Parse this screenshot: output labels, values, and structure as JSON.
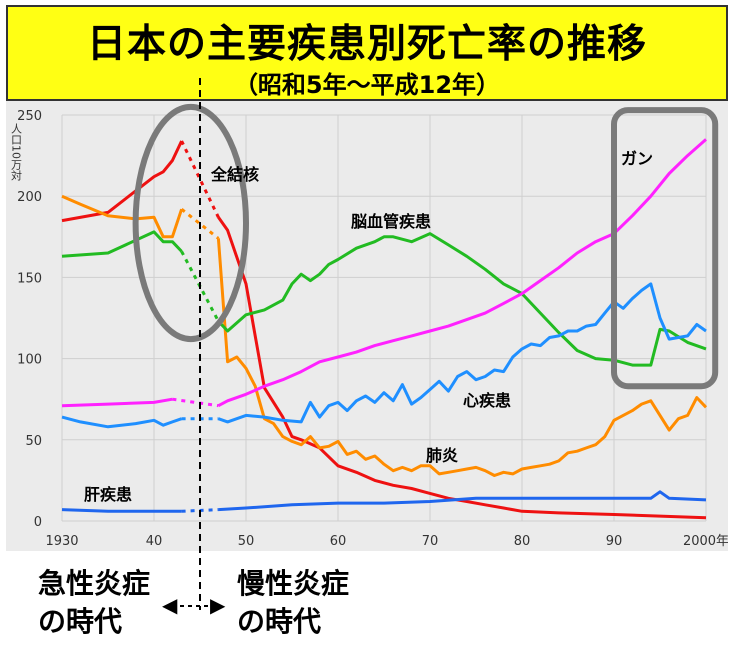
{
  "banner": {
    "title": "日本の主要疾患別死亡率の推移",
    "subtitle": "（昭和5年～平成12年）"
  },
  "eras": {
    "acute": [
      "急性炎症",
      "の時代"
    ],
    "chronic": [
      "慢性炎症",
      "の時代"
    ]
  },
  "chart_data": {
    "type": "line",
    "title": "日本の主要疾患別死亡率の推移",
    "ylabel": "人口10万対",
    "xlim": [
      1930,
      2000
    ],
    "ylim": [
      0,
      250
    ],
    "yticks": [
      0,
      50,
      100,
      150,
      200,
      250
    ],
    "xticks": [
      {
        "value": 1930,
        "label": "1930"
      },
      {
        "value": 1940,
        "label": "40"
      },
      {
        "value": 1950,
        "label": "50"
      },
      {
        "value": 1960,
        "label": "60"
      },
      {
        "value": 1970,
        "label": "70"
      },
      {
        "value": 1980,
        "label": "80"
      },
      {
        "value": 1990,
        "label": "90"
      },
      {
        "value": 2000,
        "label": "2000年"
      }
    ],
    "gap": [
      1943,
      1947
    ],
    "divider_year": 1945,
    "series": [
      {
        "name": "全結核",
        "color": "#ee1111",
        "x": [
          1930,
          1935,
          1940,
          1941,
          1942,
          1943,
          1947,
          1948,
          1950,
          1952,
          1954,
          1955,
          1956,
          1958,
          1960,
          1962,
          1964,
          1966,
          1968,
          1970,
          1972,
          1974,
          1976,
          1978,
          1980,
          1984,
          1990,
          1995,
          2000
        ],
        "y": [
          185,
          190,
          212,
          215,
          222,
          234,
          187,
          179,
          146,
          82,
          64,
          52,
          50,
          45,
          34,
          30,
          25,
          22,
          20,
          17,
          14,
          12,
          10,
          8,
          6,
          5,
          4,
          3,
          2
        ]
      },
      {
        "name": "肺炎",
        "color": "#ff8c00",
        "x": [
          1930,
          1932,
          1935,
          1938,
          1940,
          1941,
          1942,
          1943,
          1947,
          1948,
          1949,
          1950,
          1951,
          1952,
          1953,
          1954,
          1955,
          1956,
          1957,
          1958,
          1959,
          1960,
          1961,
          1962,
          1963,
          1964,
          1965,
          1966,
          1967,
          1968,
          1969,
          1970,
          1971,
          1972,
          1973,
          1974,
          1975,
          1976,
          1977,
          1978,
          1979,
          1980,
          1981,
          1982,
          1983,
          1984,
          1985,
          1986,
          1987,
          1988,
          1989,
          1990,
          1991,
          1992,
          1993,
          1994,
          1995,
          1996,
          1997,
          1998,
          1999,
          2000
        ],
        "y": [
          200,
          195,
          188,
          186,
          187,
          175,
          175,
          192,
          174,
          98,
          101,
          94,
          83,
          63,
          60,
          52,
          49,
          47,
          52,
          45,
          46,
          49,
          41,
          43,
          38,
          40,
          35,
          31,
          33,
          31,
          34,
          34,
          29,
          30,
          31,
          32,
          33,
          31,
          28,
          30,
          29,
          32,
          33,
          34,
          35,
          37,
          42,
          43,
          45,
          47,
          52,
          62,
          65,
          68,
          72,
          74,
          65,
          56,
          63,
          65,
          76,
          70
        ]
      },
      {
        "name": "脳血管疾患",
        "color": "#22bb22",
        "x": [
          1930,
          1935,
          1940,
          1941,
          1942,
          1943,
          1947,
          1948,
          1950,
          1952,
          1954,
          1955,
          1956,
          1957,
          1958,
          1959,
          1960,
          1962,
          1964,
          1965,
          1966,
          1968,
          1970,
          1972,
          1974,
          1976,
          1978,
          1980,
          1982,
          1984,
          1986,
          1988,
          1990,
          1992,
          1994,
          1995,
          1996,
          1998,
          2000
        ],
        "y": [
          163,
          165,
          178,
          172,
          172,
          166,
          123,
          117,
          127,
          130,
          136,
          146,
          152,
          148,
          152,
          158,
          161,
          168,
          172,
          175,
          175,
          172,
          177,
          170,
          163,
          155,
          146,
          140,
          128,
          116,
          105,
          100,
          99,
          96,
          96,
          118,
          117,
          110,
          106
        ]
      },
      {
        "name": "ガン",
        "color": "#ff22ff",
        "x": [
          1930,
          1935,
          1940,
          1942,
          1947,
          1948,
          1950,
          1952,
          1954,
          1956,
          1958,
          1960,
          1962,
          1964,
          1966,
          1968,
          1970,
          1972,
          1974,
          1976,
          1978,
          1980,
          1982,
          1984,
          1986,
          1988,
          1990,
          1992,
          1994,
          1996,
          1998,
          2000
        ],
        "y": [
          71,
          72,
          73,
          75,
          71,
          74,
          78,
          83,
          87,
          92,
          98,
          101,
          104,
          108,
          111,
          114,
          117,
          120,
          124,
          128,
          134,
          140,
          148,
          156,
          165,
          172,
          177,
          188,
          200,
          214,
          225,
          235
        ]
      },
      {
        "name": "心疾患",
        "color": "#1f8fff",
        "x": [
          1930,
          1932,
          1935,
          1938,
          1940,
          1941,
          1942,
          1943,
          1947,
          1948,
          1950,
          1952,
          1954,
          1956,
          1957,
          1958,
          1959,
          1960,
          1961,
          1962,
          1963,
          1964,
          1965,
          1966,
          1967,
          1968,
          1969,
          1970,
          1971,
          1972,
          1973,
          1974,
          1975,
          1976,
          1977,
          1978,
          1979,
          1980,
          1981,
          1982,
          1983,
          1984,
          1985,
          1986,
          1987,
          1988,
          1989,
          1990,
          1991,
          1992,
          1993,
          1994,
          1995,
          1996,
          1997,
          1998,
          1999,
          2000
        ],
        "y": [
          64,
          61,
          58,
          60,
          62,
          59,
          61,
          63,
          63,
          61,
          65,
          64,
          62,
          61,
          73,
          64,
          71,
          73,
          68,
          74,
          77,
          73,
          79,
          74,
          84,
          72,
          76,
          81,
          86,
          80,
          89,
          92,
          87,
          89,
          93,
          92,
          101,
          106,
          109,
          108,
          113,
          114,
          117,
          117,
          120,
          121,
          128,
          135,
          131,
          137,
          142,
          146,
          125,
          112,
          113,
          114,
          121,
          117
        ]
      },
      {
        "name": "肝疾患",
        "color": "#1f66ee",
        "x": [
          1930,
          1935,
          1940,
          1943,
          1947,
          1950,
          1955,
          1960,
          1965,
          1970,
          1975,
          1980,
          1985,
          1990,
          1994,
          1995,
          1996,
          2000
        ],
        "y": [
          7,
          6,
          6,
          6,
          7,
          8,
          10,
          11,
          11,
          12,
          14,
          14,
          14,
          14,
          14,
          18,
          14,
          13
        ]
      }
    ],
    "annotations": [
      {
        "text": "全結核",
        "series": "全結核"
      },
      {
        "text": "脳血管疾患",
        "series": "脳血管疾患"
      },
      {
        "text": "ガン",
        "series": "ガン"
      },
      {
        "text": "心疾患",
        "series": "心疾患"
      },
      {
        "text": "肺炎",
        "series": "肺炎"
      },
      {
        "text": "肝疾患",
        "series": "肝疾患"
      }
    ],
    "highlights": [
      {
        "shape": "ellipse",
        "x_range": [
          1938,
          1950
        ],
        "y_range": [
          112,
          255
        ]
      },
      {
        "shape": "rounded-rect",
        "x_range": [
          1990,
          2001
        ],
        "y_range": [
          83,
          253
        ]
      }
    ]
  }
}
